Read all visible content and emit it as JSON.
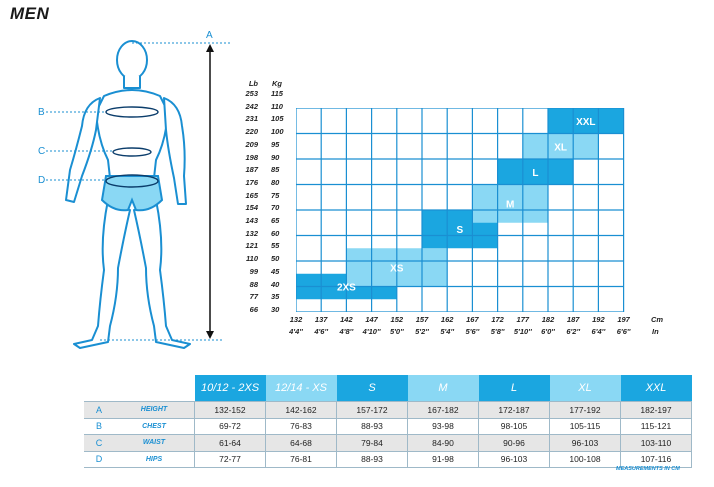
{
  "title": "MEN",
  "body_markers": {
    "a": "A",
    "b": "B",
    "c": "C",
    "d": "D"
  },
  "chart_data": {
    "type": "heatmap",
    "xlabel_top": "Cm",
    "xlabel_bottom": "In",
    "ylabel_left": "Lb",
    "ylabel_right": "Kg",
    "x_cm": [
      "132",
      "137",
      "142",
      "147",
      "152",
      "157",
      "162",
      "167",
      "172",
      "177",
      "182",
      "187",
      "192",
      "197"
    ],
    "x_in": [
      "4'4''",
      "4'6''",
      "4'8''",
      "4'10''",
      "5'0''",
      "5'2''",
      "5'4''",
      "5'6''",
      "5'8''",
      "5'10''",
      "6'0''",
      "6'2''",
      "6'4''",
      "6'6''"
    ],
    "y_lb": [
      "253",
      "242",
      "231",
      "220",
      "209",
      "198",
      "187",
      "176",
      "165",
      "154",
      "143",
      "132",
      "121",
      "110",
      "99",
      "88",
      "77",
      "66"
    ],
    "y_kg": [
      "115",
      "110",
      "105",
      "100",
      "95",
      "90",
      "85",
      "80",
      "75",
      "70",
      "65",
      "60",
      "55",
      "50",
      "45",
      "40",
      "35",
      "30"
    ],
    "sizes": [
      {
        "label": "2XS",
        "cm_from": 132,
        "cm_to": 152,
        "kg_from": 30,
        "kg_to": 40,
        "color": "#1ba6e0"
      },
      {
        "label": "XS",
        "cm_from": 142,
        "cm_to": 162,
        "kg_from": 35,
        "kg_to": 50,
        "color": "#8ad8f4"
      },
      {
        "label": "S",
        "cm_from": 157,
        "cm_to": 172,
        "kg_from": 50,
        "kg_to": 65,
        "color": "#1ba6e0"
      },
      {
        "label": "M",
        "cm_from": 167,
        "cm_to": 182,
        "kg_from": 60,
        "kg_to": 75,
        "color": "#8ad8f4"
      },
      {
        "label": "L",
        "cm_from": 172,
        "cm_to": 187,
        "kg_from": 75,
        "kg_to": 85,
        "color": "#1ba6e0"
      },
      {
        "label": "XL",
        "cm_from": 177,
        "cm_to": 192,
        "kg_from": 85,
        "kg_to": 95,
        "color": "#8ad8f4"
      },
      {
        "label": "XXL",
        "cm_from": 182,
        "cm_to": 197,
        "kg_from": 95,
        "kg_to": 105,
        "color": "#1ba6e0"
      }
    ]
  },
  "size_table": {
    "headers": [
      "10/12 - 2XS",
      "12/14 - XS",
      "S",
      "M",
      "L",
      "XL",
      "XXL"
    ],
    "header_colors": [
      "#1ba6e0",
      "#8ad8f4",
      "#1ba6e0",
      "#8ad8f4",
      "#1ba6e0",
      "#8ad8f4",
      "#1ba6e0"
    ],
    "rows": [
      {
        "letter": "A",
        "name": "HEIGHT",
        "values": [
          "132-152",
          "142-162",
          "157-172",
          "167-182",
          "172-187",
          "177-192",
          "182-197"
        ]
      },
      {
        "letter": "B",
        "name": "CHEST",
        "values": [
          "69-72",
          "76-83",
          "88-93",
          "93-98",
          "98-105",
          "105-115",
          "115-121"
        ]
      },
      {
        "letter": "C",
        "name": "WAIST",
        "values": [
          "61-64",
          "64-68",
          "79-84",
          "84-90",
          "90-96",
          "96-103",
          "103-110"
        ]
      },
      {
        "letter": "D",
        "name": "HIPS",
        "values": [
          "72-77",
          "76-81",
          "88-93",
          "91-98",
          "96-103",
          "100-108",
          "107-116"
        ]
      }
    ]
  },
  "note": "MEASUREMENTS IN CM"
}
